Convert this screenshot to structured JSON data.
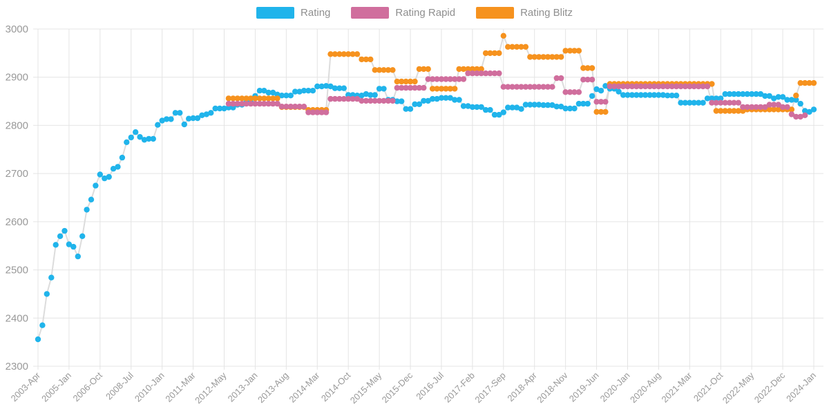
{
  "legend": {
    "items": [
      {
        "label": "Rating"
      },
      {
        "label": "Rating Rapid"
      },
      {
        "label": "Rating Blitz"
      }
    ]
  },
  "chart_data": {
    "type": "line",
    "title": "",
    "xlabel": "",
    "ylabel": "",
    "grid": true,
    "legend_position": "top-center",
    "ylim": [
      2300,
      3000
    ],
    "yticks": [
      2300,
      2400,
      2500,
      2600,
      2700,
      2800,
      2900,
      3000
    ],
    "x_tick_every": 7,
    "connector_color": "#dcdcdc",
    "grid_color": "#e4e4e4",
    "axis_text_color": "#999999",
    "x": [
      "2003-Apr",
      "2003-Jul",
      "2003-Oct",
      "2004-Jan",
      "2004-Apr",
      "2004-Jul",
      "2004-Oct",
      "2005-Jan",
      "2005-Apr",
      "2005-Jul",
      "2005-Oct",
      "2006-Jan",
      "2006-Apr",
      "2006-Jul",
      "2006-Oct",
      "2007-Jan",
      "2007-Apr",
      "2007-Jul",
      "2007-Oct",
      "2008-Jan",
      "2008-Apr",
      "2008-Jul",
      "2008-Oct",
      "2009-Jan",
      "2009-Apr",
      "2009-Jul",
      "2009-Sep",
      "2009-Nov",
      "2010-Jan",
      "2010-Mar",
      "2010-May",
      "2010-Jul",
      "2010-Sep",
      "2010-Nov",
      "2011-Jan",
      "2011-Mar",
      "2011-May",
      "2011-Jul",
      "2011-Sep",
      "2011-Nov",
      "2012-Jan",
      "2012-Mar",
      "2012-May",
      "2012-Jul",
      "2012-Aug",
      "2012-Sep",
      "2012-Oct",
      "2012-Nov",
      "2012-Dec",
      "2013-Jan",
      "2013-Feb",
      "2013-Mar",
      "2013-Apr",
      "2013-May",
      "2013-Jun",
      "2013-Jul",
      "2013-Aug",
      "2013-Sep",
      "2013-Oct",
      "2013-Nov",
      "2013-Dec",
      "2014-Jan",
      "2014-Feb",
      "2014-Mar",
      "2014-Apr",
      "2014-May",
      "2014-Jun",
      "2014-Jul",
      "2014-Aug",
      "2014-Sep",
      "2014-Oct",
      "2014-Nov",
      "2014-Dec",
      "2015-Jan",
      "2015-Feb",
      "2015-Mar",
      "2015-Apr",
      "2015-May",
      "2015-Jun",
      "2015-Jul",
      "2015-Aug",
      "2015-Sep",
      "2015-Oct",
      "2015-Nov",
      "2015-Dec",
      "2016-Jan",
      "2016-Feb",
      "2016-Mar",
      "2016-Apr",
      "2016-May",
      "2016-Jun",
      "2016-Jul",
      "2016-Aug",
      "2016-Sep",
      "2016-Oct",
      "2016-Nov",
      "2016-Dec",
      "2017-Jan",
      "2017-Feb",
      "2017-Mar",
      "2017-Apr",
      "2017-May",
      "2017-Jun",
      "2017-Jul",
      "2017-Aug",
      "2017-Sep",
      "2017-Oct",
      "2017-Nov",
      "2017-Dec",
      "2018-Jan",
      "2018-Feb",
      "2018-Mar",
      "2018-Apr",
      "2018-May",
      "2018-Jun",
      "2018-Jul",
      "2018-Aug",
      "2018-Sep",
      "2018-Oct",
      "2018-Nov",
      "2018-Dec",
      "2019-Jan",
      "2019-Feb",
      "2019-Mar",
      "2019-Apr",
      "2019-May",
      "2019-Jun",
      "2019-Jul",
      "2019-Aug",
      "2019-Sep",
      "2019-Oct",
      "2019-Nov",
      "2019-Dec",
      "2020-Jan",
      "2020-Feb",
      "2020-Mar",
      "2020-Apr",
      "2020-May",
      "2020-Jun",
      "2020-Jul",
      "2020-Aug",
      "2020-Sep",
      "2020-Oct",
      "2020-Nov",
      "2020-Dec",
      "2021-Jan",
      "2021-Feb",
      "2021-Mar",
      "2021-Apr",
      "2021-May",
      "2021-Jun",
      "2021-Jul",
      "2021-Aug",
      "2021-Sep",
      "2021-Oct",
      "2021-Nov",
      "2021-Dec",
      "2022-Jan",
      "2022-Feb",
      "2022-Mar",
      "2022-Apr",
      "2022-May",
      "2022-Jun",
      "2022-Jul",
      "2022-Aug",
      "2022-Sep",
      "2022-Oct",
      "2022-Nov",
      "2022-Dec",
      "2023-Feb",
      "2023-Apr",
      "2023-Jun",
      "2023-Aug",
      "2023-Oct",
      "2023-Dec",
      "2024-Jan"
    ],
    "series": [
      {
        "name": "Rating",
        "color": "#20b4eb",
        "values": [
          2356,
          2385,
          2450,
          2484,
          2552,
          2570,
          2581,
          2553,
          2548,
          2528,
          2570,
          2625,
          2646,
          2675,
          2698,
          2690,
          2693,
          2710,
          2714,
          2733,
          2765,
          2775,
          2786,
          2776,
          2770,
          2772,
          2772,
          2801,
          2810,
          2813,
          2813,
          2826,
          2826,
          2802,
          2814,
          2815,
          2815,
          2821,
          2823,
          2826,
          2835,
          2835,
          2835,
          2837,
          2837,
          2843,
          2843,
          2848,
          2848,
          2861,
          2872,
          2872,
          2868,
          2868,
          2864,
          2862,
          2862,
          2862,
          2870,
          2870,
          2872,
          2872,
          2872,
          2881,
          2881,
          2882,
          2881,
          2877,
          2877,
          2877,
          2863,
          2863,
          2862,
          2862,
          2865,
          2863,
          2863,
          2876,
          2876,
          2853,
          2853,
          2850,
          2850,
          2834,
          2834,
          2844,
          2844,
          2851,
          2851,
          2855,
          2855,
          2857,
          2857,
          2857,
          2853,
          2853,
          2840,
          2840,
          2838,
          2838,
          2838,
          2832,
          2832,
          2822,
          2822,
          2827,
          2837,
          2837,
          2837,
          2834,
          2843,
          2843,
          2843,
          2843,
          2842,
          2842,
          2842,
          2839,
          2839,
          2835,
          2835,
          2835,
          2845,
          2845,
          2845,
          2861,
          2875,
          2872,
          2882,
          2876,
          2876,
          2870,
          2863,
          2863,
          2863,
          2863,
          2863,
          2863,
          2863,
          2863,
          2863,
          2863,
          2862,
          2862,
          2862,
          2847,
          2847,
          2847,
          2847,
          2847,
          2847,
          2856,
          2856,
          2856,
          2856,
          2865,
          2865,
          2865,
          2865,
          2865,
          2865,
          2865,
          2865,
          2865,
          2861,
          2861,
          2856,
          2859,
          2859,
          2853,
          2853,
          2853,
          2845,
          2830,
          2828,
          2833
        ]
      },
      {
        "name": "Rating Rapid",
        "color": "#d06e9d",
        "values": [
          null,
          null,
          null,
          null,
          null,
          null,
          null,
          null,
          null,
          null,
          null,
          null,
          null,
          null,
          null,
          null,
          null,
          null,
          null,
          null,
          null,
          null,
          null,
          null,
          null,
          null,
          null,
          null,
          null,
          null,
          null,
          null,
          null,
          null,
          null,
          null,
          null,
          null,
          null,
          null,
          null,
          null,
          null,
          2845,
          2845,
          2845,
          2845,
          2845,
          2845,
          2845,
          2845,
          2845,
          2845,
          2845,
          2845,
          2839,
          2839,
          2839,
          2839,
          2839,
          2839,
          2827,
          2827,
          2827,
          2827,
          2827,
          2855,
          2855,
          2855,
          2855,
          2855,
          2855,
          2855,
          2851,
          2851,
          2851,
          2851,
          2851,
          2851,
          2851,
          2851,
          2878,
          2878,
          2878,
          2878,
          2878,
          2878,
          2878,
          2896,
          2896,
          2896,
          2896,
          2896,
          2896,
          2896,
          2896,
          2896,
          2908,
          2908,
          2908,
          2908,
          2908,
          2908,
          2908,
          2908,
          2880,
          2880,
          2880,
          2880,
          2880,
          2880,
          2880,
          2880,
          2880,
          2880,
          2880,
          2880,
          2898,
          2898,
          2869,
          2869,
          2869,
          2869,
          2895,
          2895,
          2895,
          2849,
          2849,
          2849,
          2881,
          2881,
          2881,
          2881,
          2881,
          2881,
          2881,
          2881,
          2881,
          2881,
          2881,
          2881,
          2881,
          2881,
          2881,
          2881,
          2881,
          2881,
          2881,
          2881,
          2881,
          2881,
          2881,
          2847,
          2847,
          2847,
          2847,
          2847,
          2847,
          2847,
          2838,
          2838,
          2838,
          2838,
          2838,
          2838,
          2843,
          2843,
          2843,
          2838,
          2838,
          2823,
          2818,
          2818,
          2821
        ]
      },
      {
        "name": "Rating Blitz",
        "color": "#f6921e",
        "values": [
          null,
          null,
          null,
          null,
          null,
          null,
          null,
          null,
          null,
          null,
          null,
          null,
          null,
          null,
          null,
          null,
          null,
          null,
          null,
          null,
          null,
          null,
          null,
          null,
          null,
          null,
          null,
          null,
          null,
          null,
          null,
          null,
          null,
          null,
          null,
          null,
          null,
          null,
          null,
          null,
          null,
          null,
          null,
          2856,
          2856,
          2856,
          2856,
          2856,
          2856,
          2856,
          2856,
          2856,
          2856,
          2856,
          2856,
          2838,
          2838,
          2838,
          2838,
          2838,
          2838,
          2832,
          2832,
          2832,
          2832,
          2832,
          2948,
          2948,
          2948,
          2948,
          2948,
          2948,
          2948,
          2937,
          2937,
          2937,
          2915,
          2915,
          2915,
          2915,
          2915,
          2891,
          2891,
          2891,
          2891,
          2891,
          2917,
          2917,
          2917,
          2876,
          2876,
          2876,
          2876,
          2876,
          2876,
          2917,
          2917,
          2917,
          2917,
          2917,
          2917,
          2950,
          2950,
          2950,
          2950,
          2986,
          2963,
          2963,
          2963,
          2963,
          2963,
          2942,
          2942,
          2942,
          2942,
          2942,
          2942,
          2942,
          2942,
          2955,
          2955,
          2955,
          2955,
          2919,
          2919,
          2919,
          2828,
          2828,
          2828,
          2886,
          2886,
          2886,
          2886,
          2886,
          2886,
          2886,
          2886,
          2886,
          2886,
          2886,
          2886,
          2886,
          2886,
          2886,
          2886,
          2886,
          2886,
          2886,
          2886,
          2886,
          2886,
          2886,
          2886,
          2830,
          2830,
          2830,
          2830,
          2830,
          2830,
          2830,
          2833,
          2833,
          2833,
          2833,
          2833,
          2833,
          2833,
          2833,
          2833,
          2833,
          2833,
          2862,
          2888,
          2888,
          2888,
          2888
        ]
      }
    ]
  }
}
